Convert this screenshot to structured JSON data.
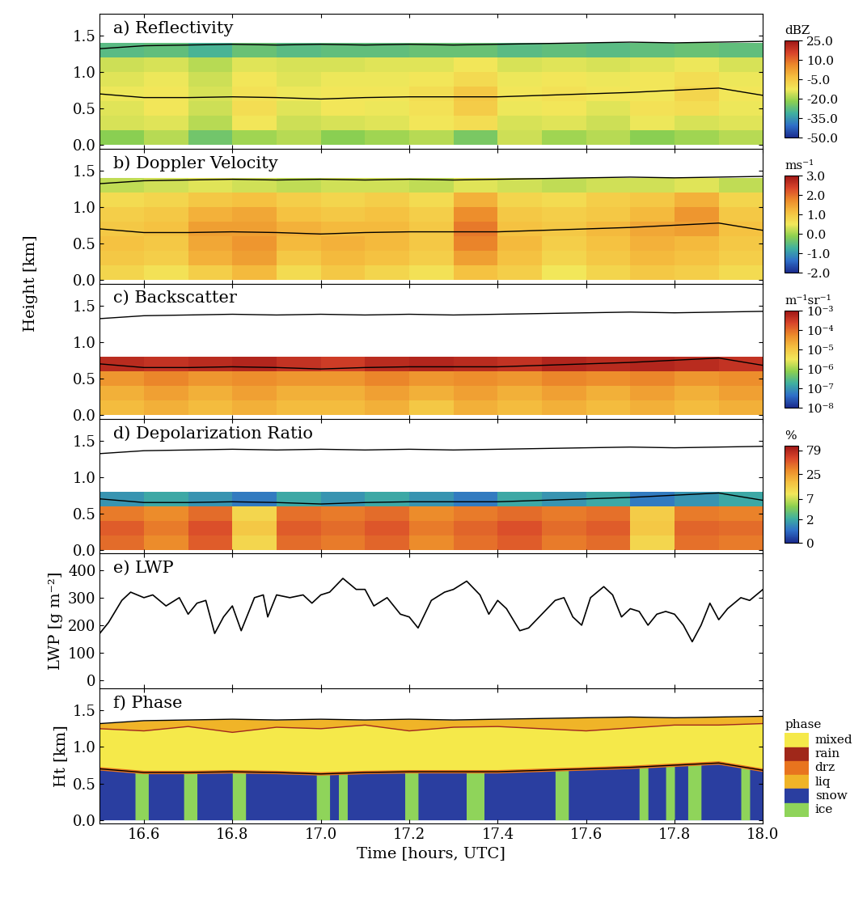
{
  "chart_data": [
    {
      "type": "heatmap",
      "title": "a) Reflectivity",
      "y_label": "Height [km]",
      "xlim": [
        16.5,
        18.0
      ],
      "xticks": [
        16.6,
        16.8,
        17.0,
        17.2,
        17.4,
        17.6,
        17.8,
        18.0
      ],
      "ylim": [
        -0.05,
        1.8
      ],
      "yticks": [
        0.0,
        0.5,
        1.0,
        1.5
      ],
      "tick_labels": "y",
      "x_edges": [
        16.5,
        16.6,
        16.7,
        16.8,
        16.9,
        17.0,
        17.1,
        17.2,
        17.3,
        17.4,
        17.5,
        17.6,
        17.7,
        17.8,
        17.9,
        18.0
      ],
      "y_edges": [
        0.0,
        0.2,
        0.4,
        0.6,
        0.8,
        1.0,
        1.2,
        1.4
      ],
      "cells": [
        [
          -22,
          -18,
          -25,
          -20,
          -18,
          -22,
          -20,
          -18,
          -24,
          -16,
          -20,
          -18,
          -22,
          -20,
          -18
        ],
        [
          -15,
          -14,
          -18,
          -12,
          -16,
          -15,
          -14,
          -12,
          -10,
          -15,
          -14,
          -16,
          -13,
          -15,
          -14
        ],
        [
          -14,
          -12,
          -16,
          -10,
          -14,
          -12,
          -13,
          -11,
          -6,
          -13,
          -12,
          -14,
          -11,
          -10,
          -13
        ],
        [
          -13,
          -12,
          -15,
          -11,
          -13,
          -12,
          -12,
          -10,
          -5,
          -12,
          -11,
          -12,
          -12,
          -8,
          -12
        ],
        [
          -14,
          -13,
          -16,
          -12,
          -14,
          -13,
          -13,
          -12,
          -9,
          -13,
          -12,
          -13,
          -12,
          -10,
          -13
        ],
        [
          -16,
          -15,
          -18,
          -14,
          -15,
          -15,
          -14,
          -14,
          -12,
          -15,
          -14,
          -15,
          -14,
          -13,
          -15
        ],
        [
          -28,
          -27,
          -30,
          -26,
          -28,
          -27,
          -27,
          -26,
          -26,
          -28,
          -27,
          -28,
          -27,
          -26,
          -27
        ]
      ],
      "colorbar": {
        "label": "dBZ",
        "range": [
          -50.0,
          25.0
        ],
        "ticks": [
          -50.0,
          -35.0,
          -20.0,
          -5.0,
          10.0,
          25.0
        ]
      },
      "lines_x": [
        16.5,
        16.6,
        16.7,
        16.8,
        16.9,
        17.0,
        17.1,
        17.2,
        17.3,
        17.4,
        17.5,
        17.6,
        17.7,
        17.8,
        17.9,
        18.0
      ],
      "lines": [
        [
          1.32,
          1.36,
          1.37,
          1.38,
          1.37,
          1.38,
          1.37,
          1.38,
          1.37,
          1.38,
          1.39,
          1.4,
          1.41,
          1.4,
          1.41,
          1.42
        ],
        [
          0.7,
          0.65,
          0.65,
          0.66,
          0.65,
          0.63,
          0.65,
          0.66,
          0.66,
          0.66,
          0.68,
          0.7,
          0.72,
          0.75,
          0.78,
          0.68
        ]
      ]
    },
    {
      "type": "heatmap",
      "title": "b) Doppler Velocity",
      "xlim": [
        16.5,
        18.0
      ],
      "xticks": [
        16.6,
        16.8,
        17.0,
        17.2,
        17.4,
        17.6,
        17.8,
        18.0
      ],
      "ylim": [
        -0.05,
        1.8
      ],
      "yticks": [
        0.0,
        0.5,
        1.0,
        1.5
      ],
      "tick_labels": "y",
      "x_edges": [
        16.5,
        16.6,
        16.7,
        16.8,
        16.9,
        17.0,
        17.1,
        17.2,
        17.3,
        17.4,
        17.5,
        17.6,
        17.7,
        17.8,
        17.9,
        18.0
      ],
      "y_edges": [
        0.0,
        0.2,
        0.4,
        0.6,
        0.8,
        1.0,
        1.2,
        1.4
      ],
      "cells": [
        [
          0.8,
          0.6,
          0.9,
          1.2,
          0.7,
          1.0,
          0.8,
          0.6,
          1.1,
          0.9,
          0.5,
          0.8,
          1.0,
          0.9,
          0.7
        ],
        [
          1.0,
          0.9,
          1.3,
          1.5,
          1.0,
          1.2,
          1.1,
          0.9,
          1.5,
          1.1,
          0.8,
          1.0,
          1.2,
          1.1,
          0.9
        ],
        [
          1.1,
          1.0,
          1.4,
          1.6,
          1.2,
          1.3,
          1.2,
          1.0,
          1.8,
          1.2,
          0.9,
          1.1,
          1.3,
          1.2,
          1.0
        ],
        [
          1.0,
          1.1,
          1.5,
          1.5,
          1.3,
          1.2,
          1.2,
          1.0,
          1.9,
          1.1,
          1.0,
          1.2,
          1.4,
          1.5,
          1.1
        ],
        [
          0.9,
          1.0,
          1.3,
          1.4,
          1.1,
          1.0,
          1.1,
          0.9,
          1.7,
          1.0,
          0.9,
          1.0,
          1.2,
          1.6,
          1.0
        ],
        [
          0.7,
          0.8,
          1.0,
          1.1,
          0.9,
          0.8,
          0.9,
          0.7,
          1.3,
          0.8,
          0.7,
          0.9,
          1.0,
          1.3,
          0.8
        ],
        [
          0.2,
          0.3,
          0.4,
          0.3,
          0.2,
          0.3,
          0.3,
          0.2,
          0.4,
          0.3,
          0.2,
          0.3,
          0.3,
          0.4,
          0.2
        ]
      ],
      "colorbar": {
        "label": "ms⁻¹",
        "range": [
          -2.0,
          3.0
        ],
        "ticks": [
          -2.0,
          -1.0,
          0.0,
          1.0,
          2.0,
          3.0
        ]
      },
      "lines_x": [
        16.5,
        16.6,
        16.7,
        16.8,
        16.9,
        17.0,
        17.1,
        17.2,
        17.3,
        17.4,
        17.5,
        17.6,
        17.7,
        17.8,
        17.9,
        18.0
      ],
      "lines": [
        [
          1.32,
          1.36,
          1.37,
          1.38,
          1.37,
          1.38,
          1.37,
          1.38,
          1.37,
          1.38,
          1.39,
          1.4,
          1.41,
          1.4,
          1.41,
          1.42
        ],
        [
          0.7,
          0.65,
          0.65,
          0.66,
          0.65,
          0.63,
          0.65,
          0.66,
          0.66,
          0.66,
          0.68,
          0.7,
          0.72,
          0.75,
          0.78,
          0.68
        ]
      ]
    },
    {
      "type": "heatmap",
      "title": "c) Backscatter",
      "xlim": [
        16.5,
        18.0
      ],
      "xticks": [
        16.6,
        16.8,
        17.0,
        17.2,
        17.4,
        17.6,
        17.8,
        18.0
      ],
      "ylim": [
        -0.05,
        1.8
      ],
      "yticks": [
        0.0,
        0.5,
        1.0,
        1.5
      ],
      "tick_labels": "y",
      "x_edges": [
        16.5,
        16.6,
        16.7,
        16.8,
        16.9,
        17.0,
        17.1,
        17.2,
        17.3,
        17.4,
        17.5,
        17.6,
        17.7,
        17.8,
        17.9,
        18.0
      ],
      "y_edges": [
        0.0,
        0.2,
        0.4,
        0.6,
        0.8,
        1.0,
        1.2,
        1.4
      ],
      "cells": [
        [
          1.5e-05,
          2e-05,
          1.5e-05,
          2e-05,
          1.5e-05,
          1.5e-05,
          2e-05,
          1e-05,
          2e-05,
          1.5e-05,
          2e-05,
          1.5e-05,
          2e-05,
          1.5e-05,
          2e-05
        ],
        [
          2e-05,
          3e-05,
          2e-05,
          3e-05,
          2e-05,
          2e-05,
          3e-05,
          2e-05,
          3e-05,
          2e-05,
          3e-05,
          2e-05,
          3e-05,
          2e-05,
          3e-05
        ],
        [
          4e-05,
          6e-05,
          4e-05,
          5e-05,
          4e-05,
          4e-05,
          6e-05,
          4e-05,
          5e-05,
          4e-05,
          6e-05,
          5e-05,
          6e-05,
          4e-05,
          5e-05
        ],
        [
          0.0005,
          0.0004,
          0.0005,
          0.0006,
          0.0004,
          0.0003,
          0.0005,
          0.0006,
          0.0005,
          0.0004,
          0.0006,
          0.0005,
          0.0006,
          0.0005,
          0.0004
        ],
        [
          null,
          null,
          null,
          null,
          null,
          null,
          null,
          null,
          null,
          null,
          null,
          null,
          null,
          null,
          null
        ],
        [
          null,
          null,
          null,
          null,
          null,
          null,
          null,
          null,
          null,
          null,
          null,
          null,
          null,
          null,
          null
        ],
        [
          null,
          null,
          null,
          null,
          null,
          null,
          null,
          null,
          null,
          null,
          null,
          null,
          null,
          null,
          null
        ]
      ],
      "colorbar": {
        "label": "m⁻¹sr⁻¹",
        "range": [
          1e-08,
          0.001
        ],
        "log": true,
        "ticks": [
          {
            "value": 1e-08,
            "label": "10⁻⁸"
          },
          {
            "value": 1e-07,
            "label": "10⁻⁷"
          },
          {
            "value": 1e-06,
            "label": "10⁻⁶"
          },
          {
            "value": 1e-05,
            "label": "10⁻⁵"
          },
          {
            "value": 0.0001,
            "label": "10⁻⁴"
          },
          {
            "value": 0.001,
            "label": "10⁻³"
          }
        ]
      },
      "lines_x": [
        16.5,
        16.6,
        16.7,
        16.8,
        16.9,
        17.0,
        17.1,
        17.2,
        17.3,
        17.4,
        17.5,
        17.6,
        17.7,
        17.8,
        17.9,
        18.0
      ],
      "lines": [
        [
          1.32,
          1.36,
          1.37,
          1.38,
          1.37,
          1.38,
          1.37,
          1.38,
          1.37,
          1.38,
          1.39,
          1.4,
          1.41,
          1.4,
          1.41,
          1.42
        ],
        [
          0.7,
          0.65,
          0.65,
          0.66,
          0.65,
          0.63,
          0.65,
          0.66,
          0.66,
          0.66,
          0.68,
          0.7,
          0.72,
          0.75,
          0.78,
          0.68
        ]
      ]
    },
    {
      "type": "heatmap",
      "title": "d) Depolarization Ratio",
      "xlim": [
        16.5,
        18.0
      ],
      "xticks": [
        16.6,
        16.8,
        17.0,
        17.2,
        17.4,
        17.6,
        17.8,
        18.0
      ],
      "ylim": [
        -0.05,
        1.8
      ],
      "yticks": [
        0.0,
        0.5,
        1.0,
        1.5
      ],
      "tick_labels": "y",
      "x_edges": [
        16.5,
        16.6,
        16.7,
        16.8,
        16.9,
        17.0,
        17.1,
        17.2,
        17.3,
        17.4,
        17.5,
        17.6,
        17.7,
        17.8,
        17.9,
        18.0
      ],
      "y_edges": [
        0.0,
        0.2,
        0.4,
        0.6,
        0.8,
        1.0,
        1.2,
        1.4
      ],
      "cells": [
        [
          40,
          30,
          45,
          12,
          40,
          35,
          42,
          30,
          38,
          45,
          35,
          40,
          12,
          38,
          35
        ],
        [
          45,
          35,
          50,
          15,
          45,
          40,
          48,
          35,
          42,
          50,
          40,
          45,
          15,
          42,
          40
        ],
        [
          35,
          30,
          40,
          12,
          38,
          35,
          40,
          30,
          35,
          40,
          35,
          38,
          14,
          35,
          33
        ],
        [
          1.5,
          2,
          1.5,
          1,
          2,
          1.5,
          2,
          1.5,
          1,
          2,
          1.5,
          2,
          1,
          1.5,
          2
        ],
        [
          null,
          null,
          null,
          null,
          null,
          null,
          null,
          null,
          null,
          null,
          null,
          null,
          null,
          null,
          null
        ],
        [
          null,
          null,
          null,
          null,
          null,
          null,
          null,
          null,
          null,
          null,
          null,
          null,
          null,
          null,
          null
        ],
        [
          null,
          null,
          null,
          null,
          null,
          null,
          null,
          null,
          null,
          null,
          null,
          null,
          null,
          null,
          null
        ]
      ],
      "colorbar": {
        "label": "%",
        "range": [
          0,
          100
        ],
        "ticks": [
          0,
          2,
          7,
          25,
          79
        ]
      },
      "lines_x": [
        16.5,
        16.6,
        16.7,
        16.8,
        16.9,
        17.0,
        17.1,
        17.2,
        17.3,
        17.4,
        17.5,
        17.6,
        17.7,
        17.8,
        17.9,
        18.0
      ],
      "lines": [
        [
          1.32,
          1.36,
          1.37,
          1.38,
          1.37,
          1.38,
          1.37,
          1.38,
          1.37,
          1.38,
          1.39,
          1.4,
          1.41,
          1.4,
          1.41,
          1.42
        ],
        [
          0.7,
          0.65,
          0.65,
          0.66,
          0.65,
          0.63,
          0.65,
          0.66,
          0.66,
          0.66,
          0.68,
          0.7,
          0.72,
          0.75,
          0.78,
          0.68
        ]
      ]
    },
    {
      "type": "line",
      "title": "e) LWP",
      "y_label": "LWP [g m⁻²]",
      "xlim": [
        16.5,
        18.0
      ],
      "xticks": [
        16.6,
        16.8,
        17.0,
        17.2,
        17.4,
        17.6,
        17.8,
        18.0
      ],
      "ylim": [
        -30,
        460
      ],
      "yticks": [
        0,
        100,
        200,
        300,
        400
      ],
      "tick_labels": "y",
      "color": "#000000",
      "x": [
        16.5,
        16.52,
        16.55,
        16.57,
        16.6,
        16.62,
        16.65,
        16.68,
        16.7,
        16.72,
        16.74,
        16.76,
        16.78,
        16.8,
        16.82,
        16.85,
        16.87,
        16.88,
        16.9,
        16.93,
        16.96,
        16.98,
        17.0,
        17.02,
        17.05,
        17.08,
        17.1,
        17.12,
        17.15,
        17.18,
        17.2,
        17.22,
        17.25,
        17.28,
        17.3,
        17.33,
        17.36,
        17.38,
        17.4,
        17.42,
        17.45,
        17.47,
        17.5,
        17.53,
        17.55,
        17.57,
        17.59,
        17.61,
        17.64,
        17.66,
        17.68,
        17.7,
        17.72,
        17.74,
        17.76,
        17.78,
        17.8,
        17.82,
        17.84,
        17.86,
        17.88,
        17.9,
        17.92,
        17.95,
        17.97,
        18.0
      ],
      "values": [
        170,
        210,
        290,
        320,
        300,
        310,
        270,
        300,
        240,
        280,
        290,
        170,
        230,
        270,
        180,
        300,
        310,
        230,
        310,
        300,
        310,
        280,
        310,
        320,
        370,
        330,
        330,
        270,
        300,
        240,
        230,
        190,
        290,
        320,
        330,
        360,
        310,
        240,
        290,
        260,
        180,
        190,
        240,
        290,
        300,
        230,
        200,
        300,
        340,
        310,
        230,
        260,
        250,
        200,
        240,
        250,
        240,
        200,
        140,
        200,
        280,
        220,
        260,
        300,
        290,
        330
      ]
    },
    {
      "type": "phase",
      "title": "f) Phase",
      "y_label": "Ht [km]",
      "x_label": "Time [hours, UTC]",
      "xlim": [
        16.5,
        18.0
      ],
      "xticks": [
        16.6,
        16.8,
        17.0,
        17.2,
        17.4,
        17.6,
        17.8,
        18.0
      ],
      "ylim": [
        -0.05,
        1.8
      ],
      "yticks": [
        0.0,
        0.5,
        1.0,
        1.5
      ],
      "categories": [
        "mixed",
        "rain",
        "drz",
        "liq",
        "snow",
        "ice"
      ],
      "colors": [
        "#f5e94a",
        "#a0281a",
        "#e8741e",
        "#f0b428",
        "#2a3ea0",
        "#8fd45a"
      ],
      "legend_title": "phase",
      "x": [
        16.5,
        16.6,
        16.7,
        16.8,
        16.9,
        17.0,
        17.1,
        17.2,
        17.3,
        17.4,
        17.5,
        17.6,
        17.7,
        17.8,
        17.9,
        18.0
      ],
      "cloud_top": [
        1.32,
        1.36,
        1.37,
        1.38,
        1.37,
        1.38,
        1.37,
        1.38,
        1.37,
        1.38,
        1.39,
        1.4,
        1.41,
        1.4,
        1.41,
        1.42
      ],
      "liquid_base": [
        1.25,
        1.22,
        1.28,
        1.2,
        1.27,
        1.25,
        1.3,
        1.22,
        1.27,
        1.28,
        1.25,
        1.22,
        1.26,
        1.3,
        1.3,
        1.32
      ],
      "cloud_base": [
        0.7,
        0.65,
        0.65,
        0.66,
        0.65,
        0.63,
        0.65,
        0.66,
        0.66,
        0.66,
        0.68,
        0.7,
        0.72,
        0.75,
        0.78,
        0.68
      ],
      "ice_columns": [
        [
          16.58,
          16.61
        ],
        [
          16.69,
          16.72
        ],
        [
          16.8,
          16.83
        ],
        [
          16.99,
          17.02
        ],
        [
          17.04,
          17.06
        ],
        [
          17.19,
          17.22
        ],
        [
          17.33,
          17.37
        ],
        [
          17.53,
          17.56
        ],
        [
          17.72,
          17.74
        ],
        [
          17.78,
          17.8
        ],
        [
          17.83,
          17.86
        ],
        [
          17.95,
          17.97
        ]
      ]
    }
  ]
}
